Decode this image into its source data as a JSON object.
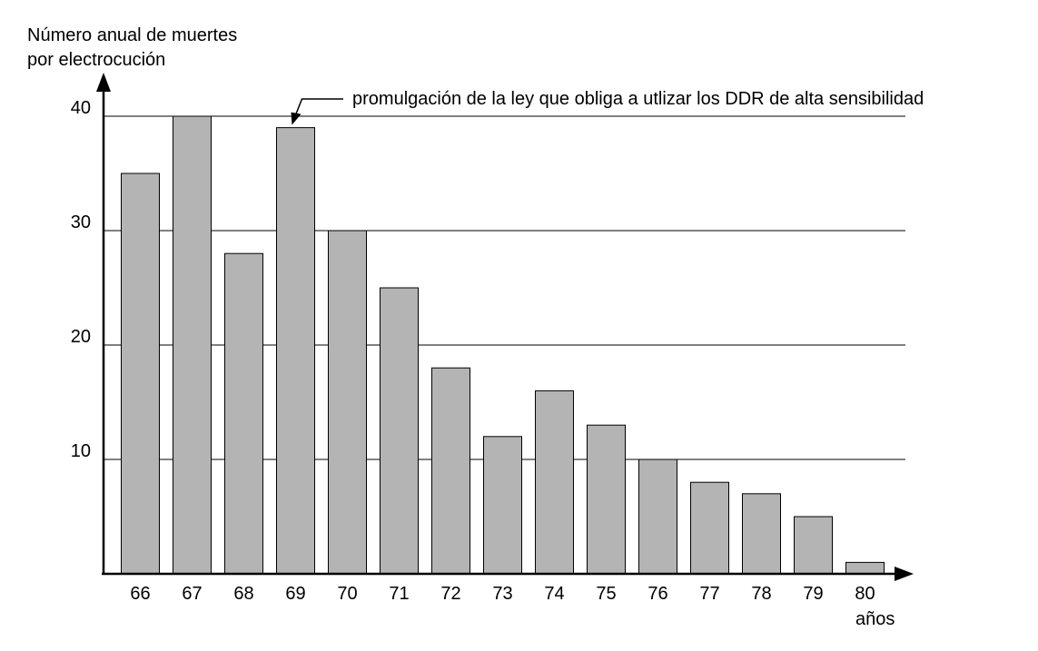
{
  "chart_data": {
    "type": "bar",
    "ylabel_lines": [
      "Número anual de muertes",
      "por electrocución"
    ],
    "xlabel": "años",
    "categories": [
      "66",
      "67",
      "68",
      "69",
      "70",
      "71",
      "72",
      "73",
      "74",
      "75",
      "76",
      "77",
      "78",
      "79",
      "80"
    ],
    "values": [
      35,
      40,
      28,
      39,
      30,
      25,
      18,
      12,
      16,
      13,
      10,
      8,
      7,
      5,
      1
    ],
    "ylim": [
      0,
      40
    ],
    "yticks": [
      "10",
      "20",
      "30",
      "40"
    ],
    "grid": true,
    "annotation": {
      "text": "promulgación de la ley que obliga a utlizar los DDR de alta sensibilidad",
      "category": "69"
    },
    "colors": {
      "bar": "#b4b4b4",
      "axis": "#000000"
    }
  }
}
